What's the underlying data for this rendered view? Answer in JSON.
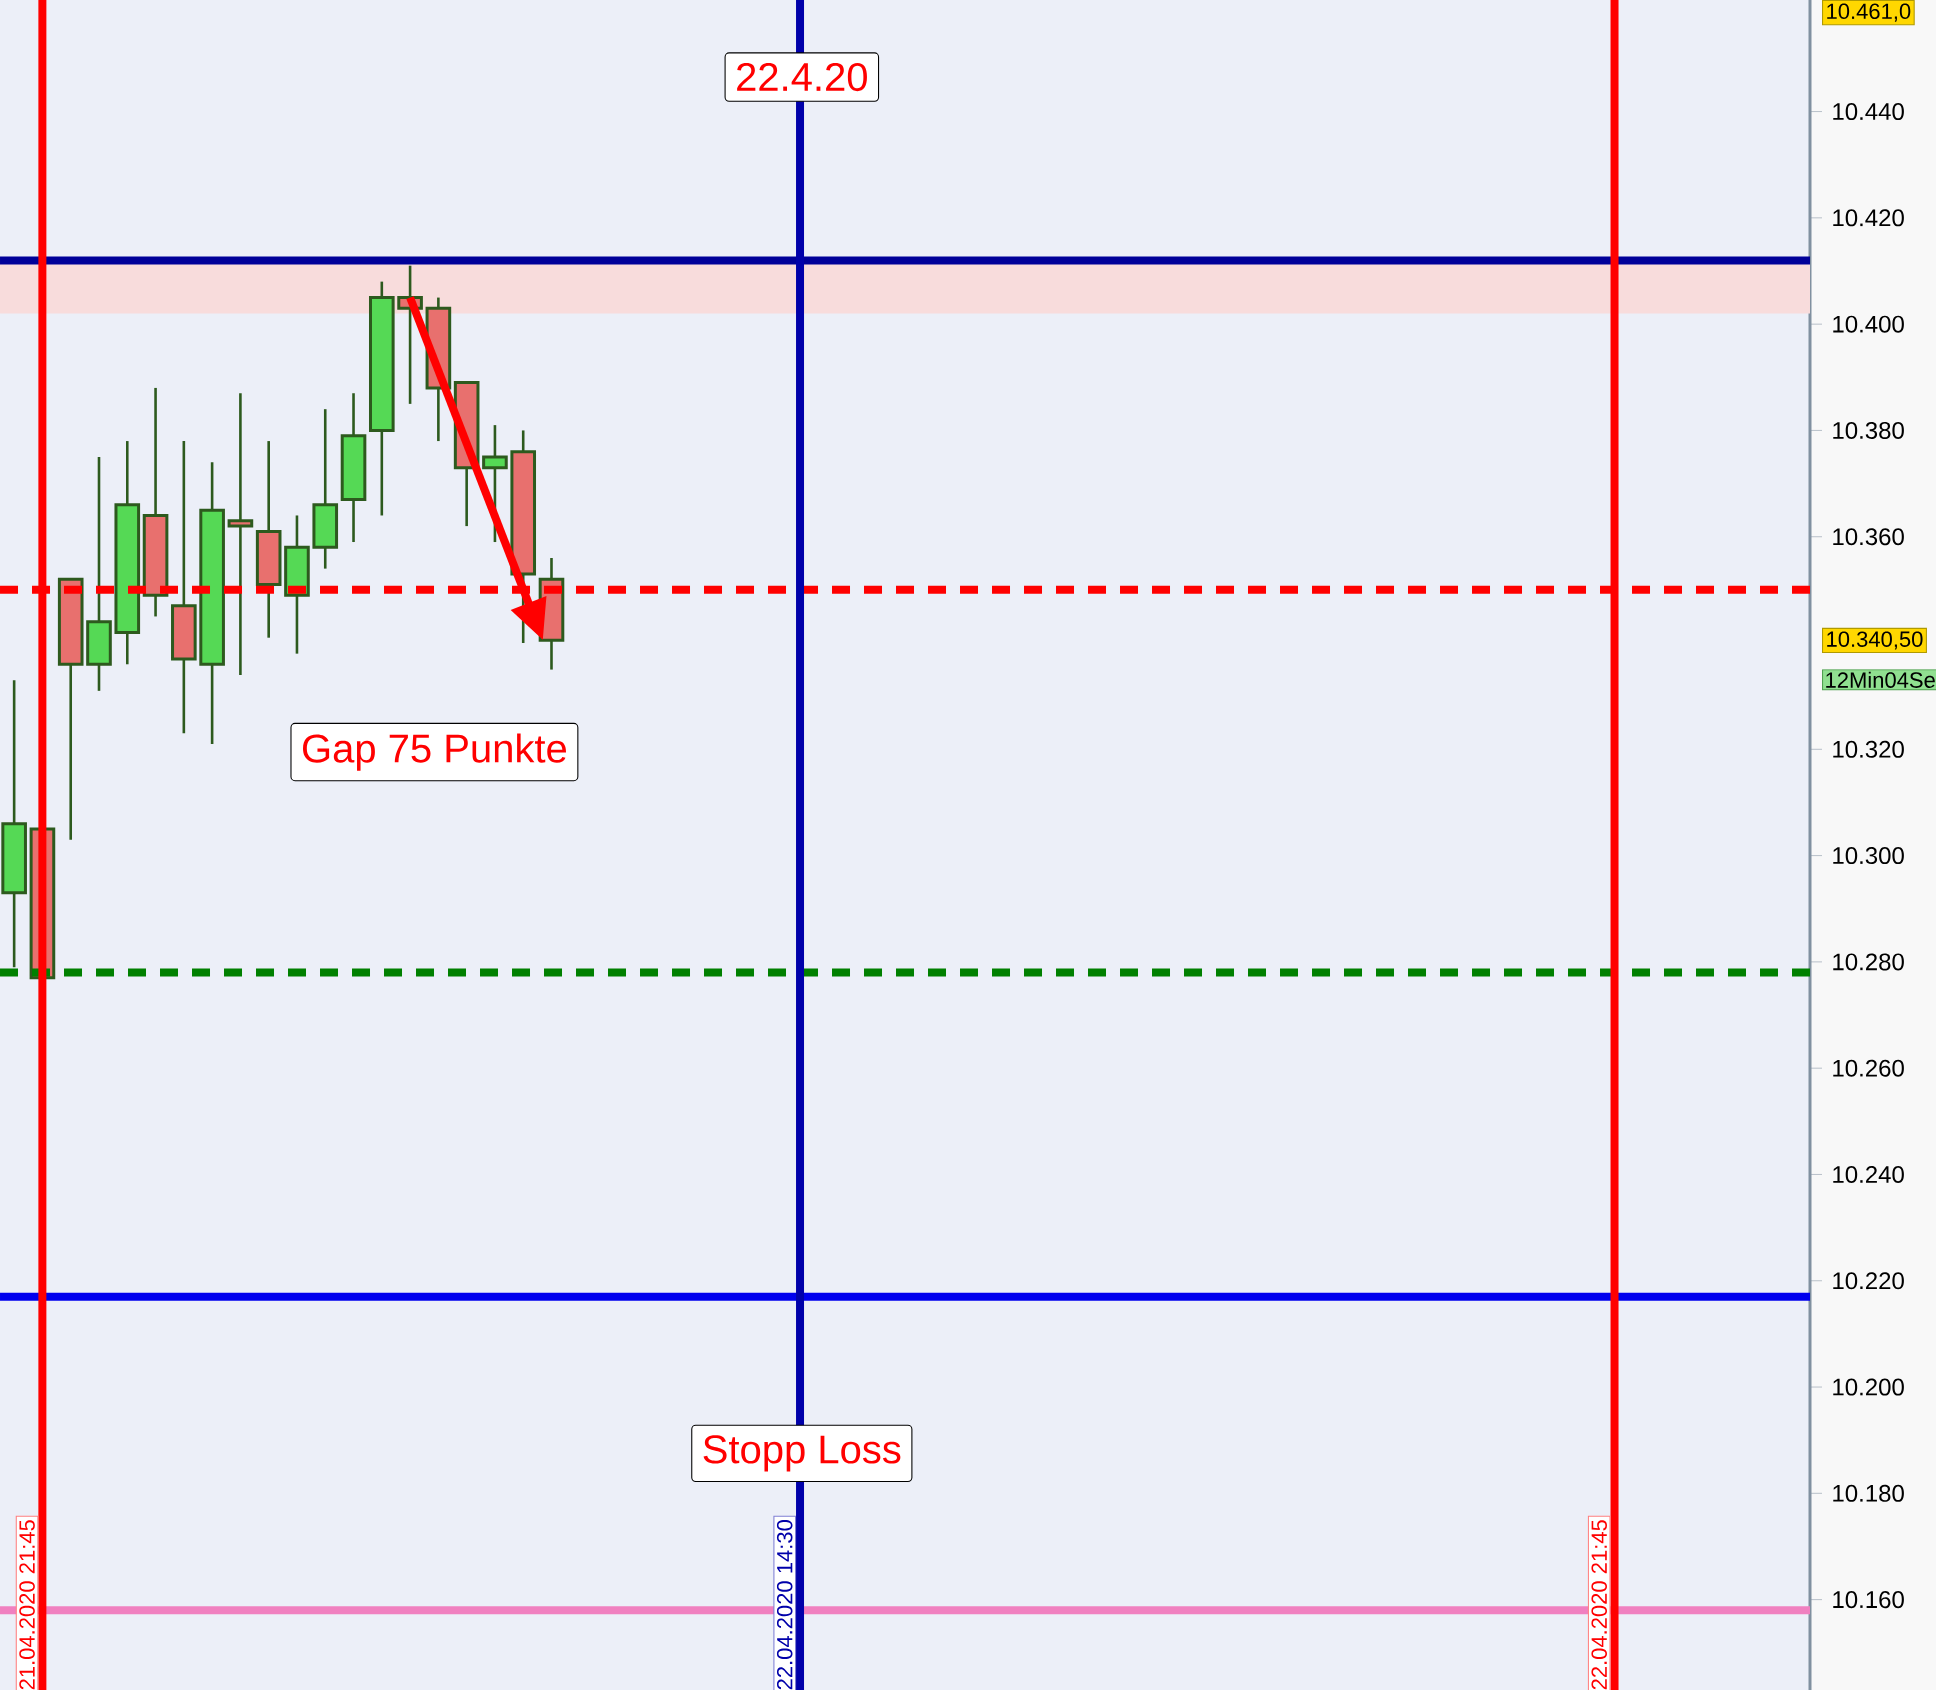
{
  "chart_data": {
    "type": "candlestick",
    "categories": [
      null,
      null,
      null,
      null,
      null,
      null,
      null,
      null,
      null,
      null,
      null,
      null,
      null,
      null,
      null,
      null,
      null,
      null,
      null,
      null,
      null,
      null,
      null,
      null,
      null,
      null,
      null,
      null,
      null,
      null,
      null,
      null,
      null,
      null,
      null,
      null,
      null,
      null,
      null,
      null,
      null,
      null,
      null,
      null,
      null,
      null,
      null,
      null,
      null,
      null,
      null,
      null,
      null,
      null,
      null,
      null,
      null,
      null,
      null,
      null,
      null,
      null,
      null,
      null
    ],
    "ohlc": [
      [
        10293,
        10333,
        10279,
        10306
      ],
      [
        10305,
        10306,
        10276,
        10277
      ],
      [
        10352,
        10352,
        10303,
        10336
      ],
      [
        10336,
        10375,
        10331,
        10344
      ],
      [
        10342,
        10378,
        10336,
        10366
      ],
      [
        10364,
        10388,
        10345,
        10349
      ],
      [
        10347,
        10378,
        10323,
        10337
      ],
      [
        10336,
        10374,
        10321,
        10365
      ],
      [
        10363,
        10387,
        10334,
        10362
      ],
      [
        10361,
        10378,
        10341,
        10351
      ],
      [
        10349,
        10364,
        10338,
        10358
      ],
      [
        10358,
        10384,
        10354,
        10366
      ],
      [
        10367,
        10387,
        10359,
        10379
      ],
      [
        10380,
        10408,
        10364,
        10405
      ],
      [
        10405,
        10411,
        10385,
        10403
      ],
      [
        10403,
        10405,
        10378,
        10388
      ],
      [
        10389,
        10389,
        10362,
        10373
      ],
      [
        10373,
        10381,
        10359,
        10375
      ],
      [
        10376,
        10380,
        10340,
        10353
      ],
      [
        10352,
        10356,
        10335,
        10340.5
      ],
      null,
      null,
      null,
      null,
      null,
      null,
      null,
      null,
      null,
      null,
      null,
      null,
      null,
      null,
      null,
      null,
      null,
      null,
      null,
      null,
      null,
      null,
      null,
      null,
      null,
      null,
      null,
      null,
      null,
      null,
      null,
      null,
      null,
      null,
      null,
      null,
      null,
      null,
      null,
      null,
      null,
      null,
      null,
      null
    ],
    "colors": [
      "#55d955",
      "#e8706e",
      "#e8706e",
      "#55d955",
      "#55d955",
      "#e8706e",
      "#e8706e",
      "#55d955",
      "#e8706e",
      "#e8706e",
      "#55d955",
      "#55d955",
      "#55d955",
      "#55d955",
      "#e8706e",
      "#e8706e",
      "#e8706e",
      "#55d955",
      "#e8706e",
      "#e8706e",
      null,
      null,
      null,
      null,
      null,
      null,
      null,
      null,
      null,
      null,
      null,
      null,
      null,
      null,
      null,
      null,
      null,
      null,
      null,
      null,
      null,
      null,
      null,
      null,
      null,
      null,
      null,
      null,
      null,
      null,
      null,
      null,
      null,
      null,
      null,
      null,
      null,
      null,
      null,
      null,
      null,
      null,
      null,
      null
    ],
    "ylim": [
      10143,
      10461
    ],
    "yticks": [
      {
        "value": 10160,
        "label": "10.160"
      },
      {
        "value": 10180,
        "label": "10.180"
      },
      {
        "value": 10200,
        "label": "10.200"
      },
      {
        "value": 10220,
        "label": "10.220"
      },
      {
        "value": 10240,
        "label": "10.240"
      },
      {
        "value": 10260,
        "label": "10.260"
      },
      {
        "value": 10280,
        "label": "10.280"
      },
      {
        "value": 10300,
        "label": "10.300"
      },
      {
        "value": 10320,
        "label": "10.320"
      },
      {
        "value": 10360,
        "label": "10.360"
      },
      {
        "value": 10380,
        "label": "10.380"
      },
      {
        "value": 10400,
        "label": "10.400"
      },
      {
        "value": 10420,
        "label": "10.420"
      },
      {
        "value": 10440,
        "label": "10.440"
      }
    ],
    "ref_lines": [
      {
        "axis": "y",
        "value": 10412,
        "color": "#000099"
      },
      {
        "axis": "y",
        "value": 10350,
        "color": "#ff0000",
        "line_style": "dashed"
      },
      {
        "axis": "y",
        "value": 10278,
        "color": "#008000",
        "line_style": "dashed"
      },
      {
        "axis": "y",
        "value": 10217,
        "color": "#0000ee"
      },
      {
        "axis": "y",
        "value": 10158,
        "color": "#f080c0"
      }
    ],
    "bands": [
      {
        "axis": "y",
        "from": 10402,
        "to": 10412,
        "color": "#f8dcdc"
      }
    ],
    "annotations": [
      "22.4.20",
      "Gap 75 Punkte",
      "10.461,0",
      "10.340,50",
      "12Min04Se",
      "21.04.2020 21:45",
      "22.04.2020 14:30",
      "22.04.2020 21:45",
      "Stopp Loss"
    ]
  }
}
